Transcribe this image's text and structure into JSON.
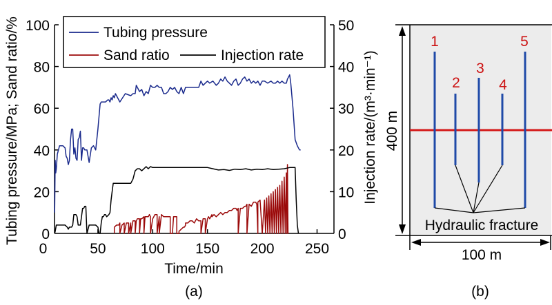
{
  "chart_data": {
    "type": "line",
    "panel_label": "(a)",
    "xlabel": "Time/min",
    "ylabel_left": "Tubing pressure/MPa; Sand ratio/%",
    "ylabel_right": "Injection rate/(m³·min⁻¹)",
    "xlim": [
      0,
      250
    ],
    "ylim_left": [
      0,
      100
    ],
    "ylim_right": [
      0,
      50
    ],
    "xticks": [
      "0",
      "50",
      "100",
      "150",
      "200",
      "250"
    ],
    "yticks_left": [
      "0",
      "20",
      "40",
      "60",
      "80",
      "100"
    ],
    "yticks_right": [
      "0",
      "10",
      "20",
      "30",
      "40",
      "50"
    ],
    "grid": false,
    "legend_position": "top",
    "legend": [
      "Tubing pressure",
      "Sand ratio",
      "Injection rate"
    ],
    "colors": {
      "tubing_pressure": "#1a2a8c",
      "sand_ratio": "#9b0a0a",
      "injection_rate": "#000000"
    },
    "series": [
      {
        "name": "Tubing pressure",
        "axis": "left",
        "x": [
          10.5,
          11,
          11.5,
          12,
          13,
          15,
          18,
          20,
          21,
          22,
          23,
          24,
          25,
          26,
          27,
          28,
          29,
          30,
          31,
          32,
          33,
          34,
          35,
          36,
          37,
          38,
          39,
          40,
          42,
          44,
          46,
          48,
          50,
          51,
          52,
          53,
          55,
          56,
          57,
          59,
          60,
          61,
          62,
          63,
          64,
          65,
          66,
          70,
          75,
          80,
          82,
          84,
          85,
          88,
          90,
          92,
          94,
          96,
          98,
          100,
          102,
          104,
          106,
          108,
          110,
          112,
          114,
          116,
          118,
          120,
          122,
          124,
          126,
          128,
          130,
          135,
          140,
          142,
          144,
          146,
          148,
          150,
          152,
          155,
          158,
          160,
          162,
          164,
          166,
          168,
          170,
          172,
          174,
          176,
          178,
          180,
          182,
          184,
          186,
          188,
          190,
          192,
          194,
          196,
          198,
          200,
          202,
          205,
          208,
          210,
          212,
          214,
          216,
          218,
          220,
          222,
          223,
          224,
          225,
          226,
          228,
          230,
          232,
          233,
          234,
          235
        ],
        "values": [
          10,
          35,
          29,
          31,
          38,
          42,
          42,
          41,
          37,
          36,
          33,
          35,
          45,
          50,
          50,
          38,
          41,
          36,
          35,
          45,
          46,
          49,
          35,
          41,
          41,
          40,
          40,
          40,
          34,
          41,
          42,
          40,
          50,
          56,
          62,
          63,
          63,
          63,
          63,
          64,
          64,
          63,
          65,
          64,
          66,
          65,
          67,
          63,
          67,
          66,
          67,
          67,
          71,
          68,
          69,
          66,
          68,
          67,
          71,
          70,
          70,
          71,
          70,
          70,
          67,
          67,
          68,
          70,
          69,
          70,
          68,
          67,
          70,
          67,
          70,
          70,
          70,
          70,
          73,
          71,
          72,
          73,
          72,
          73,
          71,
          72,
          74,
          73,
          75,
          73,
          72,
          71,
          73,
          74,
          71,
          72,
          74,
          75,
          73,
          74,
          72,
          73,
          72,
          73,
          71,
          73,
          73,
          72,
          73,
          72,
          72,
          73,
          72,
          73,
          72,
          72,
          74,
          75,
          76,
          72,
          60,
          45,
          42,
          41,
          40,
          40
        ]
      },
      {
        "name": "Sand ratio",
        "axis": "left",
        "segments_note": "Intermittent slugs of sand concentration rising from ~0 to ~33% near end",
        "x": [
          65,
          65,
          67,
          69,
          70,
          70,
          72,
          74,
          74,
          76,
          78,
          78,
          80,
          80,
          82,
          84,
          84,
          85,
          86,
          88,
          88,
          89,
          90,
          92,
          92,
          93,
          94,
          96,
          97,
          98,
          98,
          100,
          101,
          102,
          104,
          104,
          106,
          106,
          108,
          110,
          112,
          114,
          115,
          116,
          116,
          118,
          119,
          121,
          122,
          122,
          124,
          124,
          126,
          128,
          129,
          130,
          130,
          132,
          134,
          136,
          138,
          140,
          142,
          144,
          144,
          146,
          148,
          148,
          150,
          151,
          152,
          154,
          154,
          156,
          158,
          160,
          162,
          164,
          166,
          168,
          170,
          172,
          174,
          176,
          177,
          178,
          178,
          180,
          182,
          184,
          185,
          186,
          186,
          188,
          190,
          192,
          194,
          195,
          196,
          196,
          198,
          200,
          202,
          203,
          204,
          205,
          206,
          207,
          208,
          209,
          210,
          211,
          212,
          213,
          214,
          215,
          216,
          217,
          218,
          219,
          220,
          221,
          222,
          222.5,
          223,
          223.5,
          224
        ],
        "values": [
          0,
          3,
          4,
          4,
          5,
          0,
          4,
          5,
          0,
          5,
          5,
          0,
          5,
          0,
          6,
          6,
          0,
          6,
          7,
          7,
          0,
          7,
          7,
          8,
          0,
          8,
          8,
          8,
          9,
          8,
          0,
          7,
          8,
          9,
          9,
          0,
          8,
          0,
          9,
          8,
          8,
          8,
          8,
          8,
          0,
          0,
          8,
          8,
          8,
          0,
          0,
          1,
          2,
          3,
          3,
          4,
          5,
          5,
          6,
          6,
          5,
          7,
          6,
          6,
          0,
          7,
          7,
          0,
          7,
          8,
          7,
          9,
          8,
          9,
          8,
          9,
          10,
          9,
          10,
          10,
          11,
          11,
          12,
          12,
          11,
          12,
          0,
          12,
          12,
          13,
          13,
          14,
          0,
          14,
          13,
          15,
          15,
          14,
          0,
          15,
          16,
          0,
          16,
          0,
          17,
          0,
          18,
          0,
          19,
          0,
          20,
          0,
          21,
          0,
          22,
          0,
          23,
          0,
          25,
          0,
          27,
          0,
          29,
          0,
          33,
          0,
          0
        ]
      },
      {
        "name": "Injection rate",
        "axis": "right",
        "x": [
          10.5,
          11,
          12,
          13,
          14,
          16,
          18,
          20,
          22,
          23,
          24,
          26,
          27,
          28,
          30,
          31,
          32,
          33,
          34,
          36,
          37,
          38,
          39,
          40,
          42,
          44,
          46,
          48,
          50,
          51,
          52,
          53,
          54,
          55,
          56,
          57,
          58,
          60,
          61,
          62,
          63,
          64,
          65,
          66,
          70,
          75,
          80,
          82,
          84,
          86,
          88,
          90,
          92,
          94,
          96,
          98,
          100,
          105,
          110,
          120,
          130,
          140,
          150,
          155,
          160,
          165,
          170,
          175,
          180,
          185,
          190,
          195,
          200,
          205,
          210,
          215,
          220,
          225,
          228,
          230,
          231,
          232,
          233
        ],
        "values": [
          0,
          0.5,
          2,
          2,
          2,
          2,
          2,
          2,
          1.5,
          1,
          1.5,
          1.5,
          2,
          4.5,
          4.5,
          4,
          2,
          2,
          2,
          6,
          6,
          6.5,
          6.5,
          0,
          2,
          2,
          2,
          2,
          1.5,
          0,
          0,
          2.5,
          4,
          4,
          4.5,
          4.5,
          4,
          4.5,
          5,
          8,
          10,
          12,
          12,
          12,
          12,
          12,
          12,
          13,
          15,
          15.5,
          15.5,
          15,
          15.5,
          16,
          15.5,
          16,
          15.8,
          15.8,
          15.8,
          15.8,
          15.8,
          15.8,
          15.8,
          15.5,
          15.2,
          15.3,
          15.1,
          15.4,
          15.3,
          15.5,
          15.2,
          15.4,
          15.3,
          15.5,
          15.3,
          15.4,
          15.5,
          15.8,
          15.8,
          15.8,
          8,
          2,
          0
        ]
      }
    ]
  },
  "diagram": {
    "panel_label": "(b)",
    "height_label": "400 m",
    "width_label": "100 m",
    "fracture_label": "Hydraulic fracture",
    "wells": [
      {
        "label": "1"
      },
      {
        "label": "2"
      },
      {
        "label": "3"
      },
      {
        "label": "4"
      },
      {
        "label": "5"
      }
    ],
    "colors": {
      "well": "#1f4aa8",
      "label": "#cc1111",
      "fracture_line": "#d41a1a",
      "background": "#ececec"
    }
  }
}
